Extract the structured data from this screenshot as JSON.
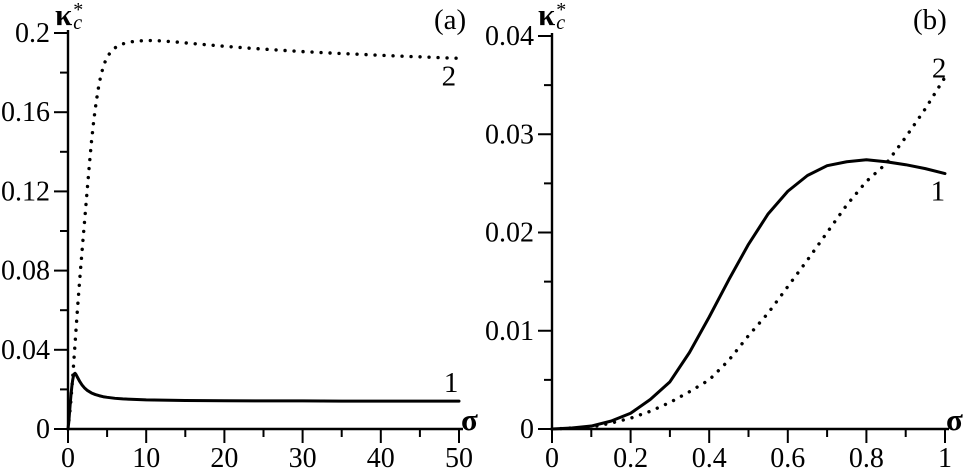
{
  "colors": {
    "ink": "#000000",
    "background": "#ffffff"
  },
  "chart_data": [
    {
      "panel": "a",
      "type": "line",
      "panel_label": "(a)",
      "xlabel": "σ",
      "ylabel": {
        "base": "κ",
        "sup": "*",
        "sub": "c"
      },
      "xlim": [
        0,
        50
      ],
      "ylim": [
        0,
        0.2
      ],
      "grid": false,
      "legend": "none (curves numbered on plot)",
      "x_ticks": {
        "values": [
          0,
          10,
          20,
          30,
          40,
          50
        ],
        "labels": [
          "0",
          "10",
          "20",
          "30",
          "40",
          "50"
        ],
        "minor_step": 5
      },
      "y_ticks": {
        "values": [
          0,
          0.04,
          0.08,
          0.12,
          0.16,
          0.2
        ],
        "labels": [
          "0",
          "0.04",
          "0.08",
          "0.12",
          "0.16",
          "0.2"
        ],
        "minor_step": 0.02
      },
      "series": [
        {
          "name": "1",
          "style": "solid",
          "label": {
            "text": "1",
            "x": 49.0,
            "y": 0.0238
          },
          "points": [
            [
              0,
              0
            ],
            [
              0.1,
              0.0035
            ],
            [
              0.2,
              0.0085
            ],
            [
              0.3,
              0.0135
            ],
            [
              0.4,
              0.018
            ],
            [
              0.5,
              0.0218
            ],
            [
              0.6,
              0.0248
            ],
            [
              0.7,
              0.0268
            ],
            [
              0.8,
              0.0278
            ],
            [
              0.9,
              0.0281
            ],
            [
              1.0,
              0.0277
            ],
            [
              1.2,
              0.0262
            ],
            [
              1.5,
              0.024
            ],
            [
              1.8,
              0.0222
            ],
            [
              2.1,
              0.0208
            ],
            [
              2.5,
              0.0194
            ],
            [
              3.0,
              0.0182
            ],
            [
              3.5,
              0.0174
            ],
            [
              4.0,
              0.0168
            ],
            [
              4.5,
              0.0163
            ],
            [
              5.0,
              0.016
            ],
            [
              6.0,
              0.0155
            ],
            [
              7.0,
              0.0152
            ],
            [
              8.0,
              0.015
            ],
            [
              10,
              0.0147
            ],
            [
              12,
              0.0146
            ],
            [
              15,
              0.0144
            ],
            [
              20,
              0.0143
            ],
            [
              25,
              0.0142
            ],
            [
              30,
              0.0142
            ],
            [
              35,
              0.0141
            ],
            [
              40,
              0.0141
            ],
            [
              45,
              0.0141
            ],
            [
              50,
              0.0141
            ]
          ]
        },
        {
          "name": "2",
          "style": "dotted",
          "label": {
            "text": "2",
            "x": 48.7,
            "y": 0.1785
          },
          "points": [
            [
              0,
              0
            ],
            [
              0.3,
              0.011
            ],
            [
              0.6,
              0.026
            ],
            [
              0.9,
              0.043
            ],
            [
              1.2,
              0.06
            ],
            [
              1.5,
              0.0755
            ],
            [
              1.8,
              0.09
            ],
            [
              2.1,
              0.104
            ],
            [
              2.4,
              0.118
            ],
            [
              2.7,
              0.132
            ],
            [
              3.0,
              0.145
            ],
            [
              3.3,
              0.156
            ],
            [
              3.6,
              0.165
            ],
            [
              4.0,
              0.175
            ],
            [
              4.5,
              0.183
            ],
            [
              5.0,
              0.188
            ],
            [
              5.5,
              0.1905
            ],
            [
              6.0,
              0.1925
            ],
            [
              7.0,
              0.1945
            ],
            [
              8.0,
              0.1955
            ],
            [
              9.0,
              0.196
            ],
            [
              10,
              0.1962
            ],
            [
              11,
              0.1962
            ],
            [
              12,
              0.196
            ],
            [
              13,
              0.1957
            ],
            [
              14,
              0.1954
            ],
            [
              15,
              0.195
            ],
            [
              17,
              0.1943
            ],
            [
              20,
              0.1933
            ],
            [
              23,
              0.1924
            ],
            [
              26,
              0.1916
            ],
            [
              30,
              0.1906
            ],
            [
              34,
              0.1898
            ],
            [
              38,
              0.1891
            ],
            [
              42,
              0.1884
            ],
            [
              46,
              0.1878
            ],
            [
              50,
              0.1872
            ]
          ]
        }
      ]
    },
    {
      "panel": "b",
      "type": "line",
      "panel_label": "(b)",
      "xlabel": "σ",
      "ylabel": {
        "base": "κ",
        "sup": "*",
        "sub": "c"
      },
      "xlim": [
        0,
        1
      ],
      "ylim": [
        0,
        0.04
      ],
      "grid": false,
      "legend": "none (curves numbered on plot)",
      "x_ticks": {
        "values": [
          0,
          0.2,
          0.4,
          0.6,
          0.8,
          1
        ],
        "labels": [
          "0",
          "0.2",
          "0.4",
          "0.6",
          "0.8",
          "1"
        ],
        "minor_step": 0.1
      },
      "y_ticks": {
        "values": [
          0,
          0.01,
          0.02,
          0.03,
          0.04
        ],
        "labels": [
          "0",
          "0.01",
          "0.02",
          "0.03",
          "0.04"
        ],
        "minor_step": 0.005
      },
      "series": [
        {
          "name": "1",
          "style": "solid",
          "label": {
            "text": "1",
            "x": 0.982,
            "y": 0.0243
          },
          "points": [
            [
              0,
              0
            ],
            [
              0.05,
              0.0001
            ],
            [
              0.1,
              0.0003
            ],
            [
              0.15,
              0.0008
            ],
            [
              0.2,
              0.0016
            ],
            [
              0.25,
              0.003
            ],
            [
              0.3,
              0.0048
            ],
            [
              0.35,
              0.0078
            ],
            [
              0.4,
              0.0114
            ],
            [
              0.45,
              0.0152
            ],
            [
              0.5,
              0.0188
            ],
            [
              0.55,
              0.0219
            ],
            [
              0.6,
              0.0242
            ],
            [
              0.65,
              0.0258
            ],
            [
              0.7,
              0.0268
            ],
            [
              0.75,
              0.0272
            ],
            [
              0.8,
              0.0274
            ],
            [
              0.85,
              0.0272
            ],
            [
              0.9,
              0.0269
            ],
            [
              0.95,
              0.0265
            ],
            [
              1.0,
              0.026
            ]
          ]
        },
        {
          "name": "2",
          "style": "dotted",
          "label": {
            "text": "2",
            "x": 0.985,
            "y": 0.0368
          },
          "points": [
            [
              0,
              0
            ],
            [
              0.05,
              0.0001
            ],
            [
              0.1,
              0.0002
            ],
            [
              0.15,
              0.0006
            ],
            [
              0.2,
              0.0011
            ],
            [
              0.25,
              0.0018
            ],
            [
              0.3,
              0.0027
            ],
            [
              0.35,
              0.0038
            ],
            [
              0.4,
              0.005
            ],
            [
              0.45,
              0.007
            ],
            [
              0.5,
              0.0095
            ],
            [
              0.55,
              0.0118
            ],
            [
              0.6,
              0.0145
            ],
            [
              0.65,
              0.0172
            ],
            [
              0.7,
              0.02
            ],
            [
              0.75,
              0.0228
            ],
            [
              0.8,
              0.0252
            ],
            [
              0.85,
              0.027
            ],
            [
              0.9,
              0.0297
            ],
            [
              0.95,
              0.0326
            ],
            [
              1.0,
              0.0358
            ]
          ]
        }
      ]
    }
  ]
}
